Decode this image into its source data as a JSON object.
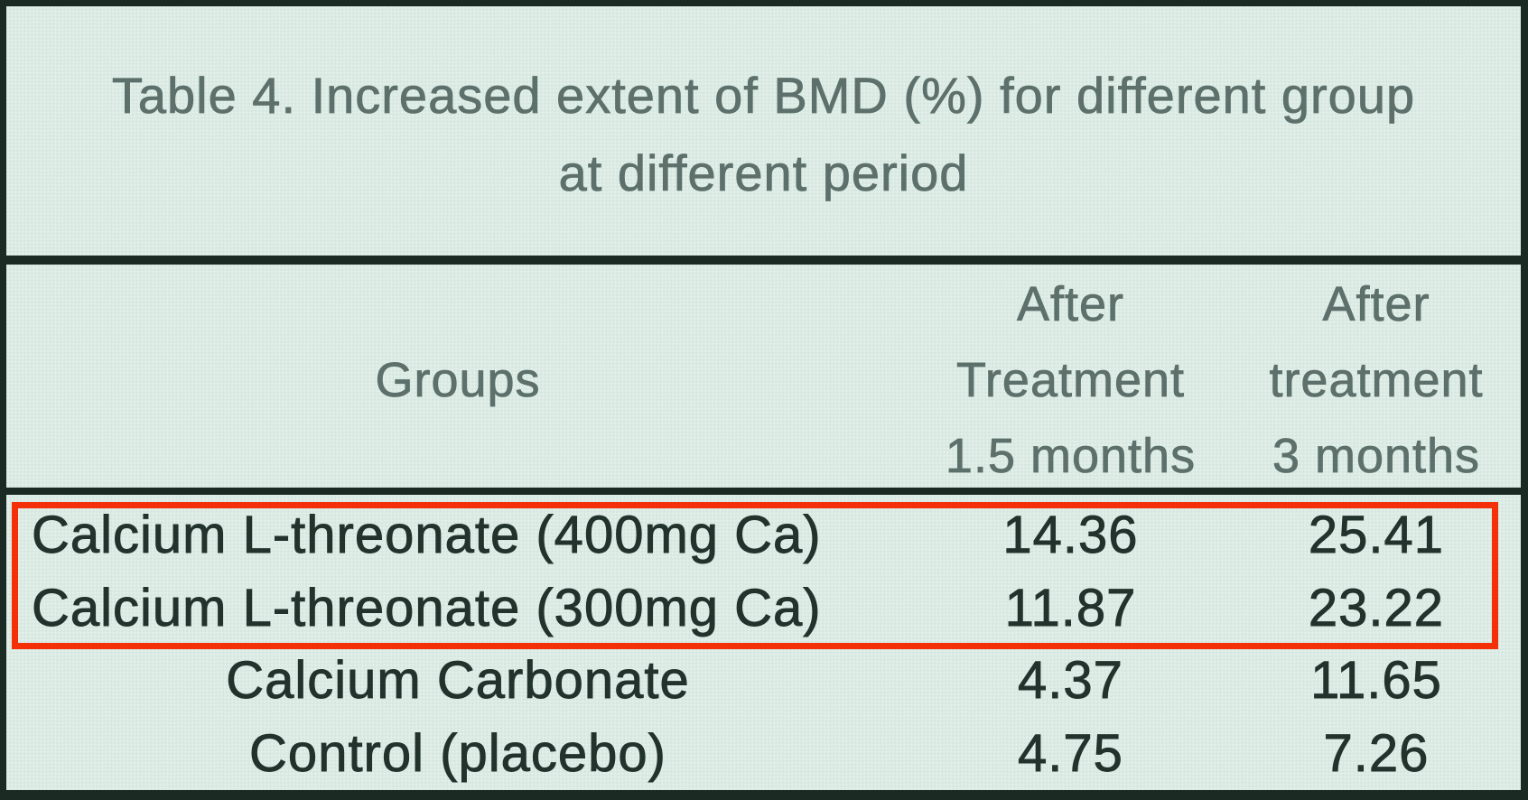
{
  "title": {
    "line1": "Table 4. Increased extent of BMD (%) for different group",
    "line2": "at different period"
  },
  "table": {
    "header": {
      "groups_label": "Groups",
      "col2_lines": [
        "After",
        "Treatment",
        "1.5 months"
      ],
      "col3_lines": [
        "After",
        "treatment",
        "3 months"
      ]
    },
    "rows": [
      {
        "label": "Calcium L-threonate (400mg Ca)",
        "after_1_5_months": "14.36",
        "after_3_months": "25.41",
        "highlighted": true
      },
      {
        "label": "Calcium L-threonate (300mg Ca)",
        "after_1_5_months": "11.87",
        "after_3_months": "23.22",
        "highlighted": true
      },
      {
        "label": "Calcium Carbonate",
        "after_1_5_months": "4.37",
        "after_3_months": "11.65",
        "highlighted": false
      },
      {
        "label": "Control (placebo)",
        "after_1_5_months": "4.75",
        "after_3_months": "7.26",
        "highlighted": false
      }
    ]
  },
  "annotations": {
    "highlight_box_rows": [
      "Calcium L-threonate (400mg Ca)",
      "Calcium L-threonate (300mg Ca)"
    ]
  },
  "colors": {
    "background": "#dcebe5",
    "border": "#1b2b24",
    "heading_text": "#5d706b",
    "body_text": "#22322d",
    "highlight_box": "#f43008"
  }
}
